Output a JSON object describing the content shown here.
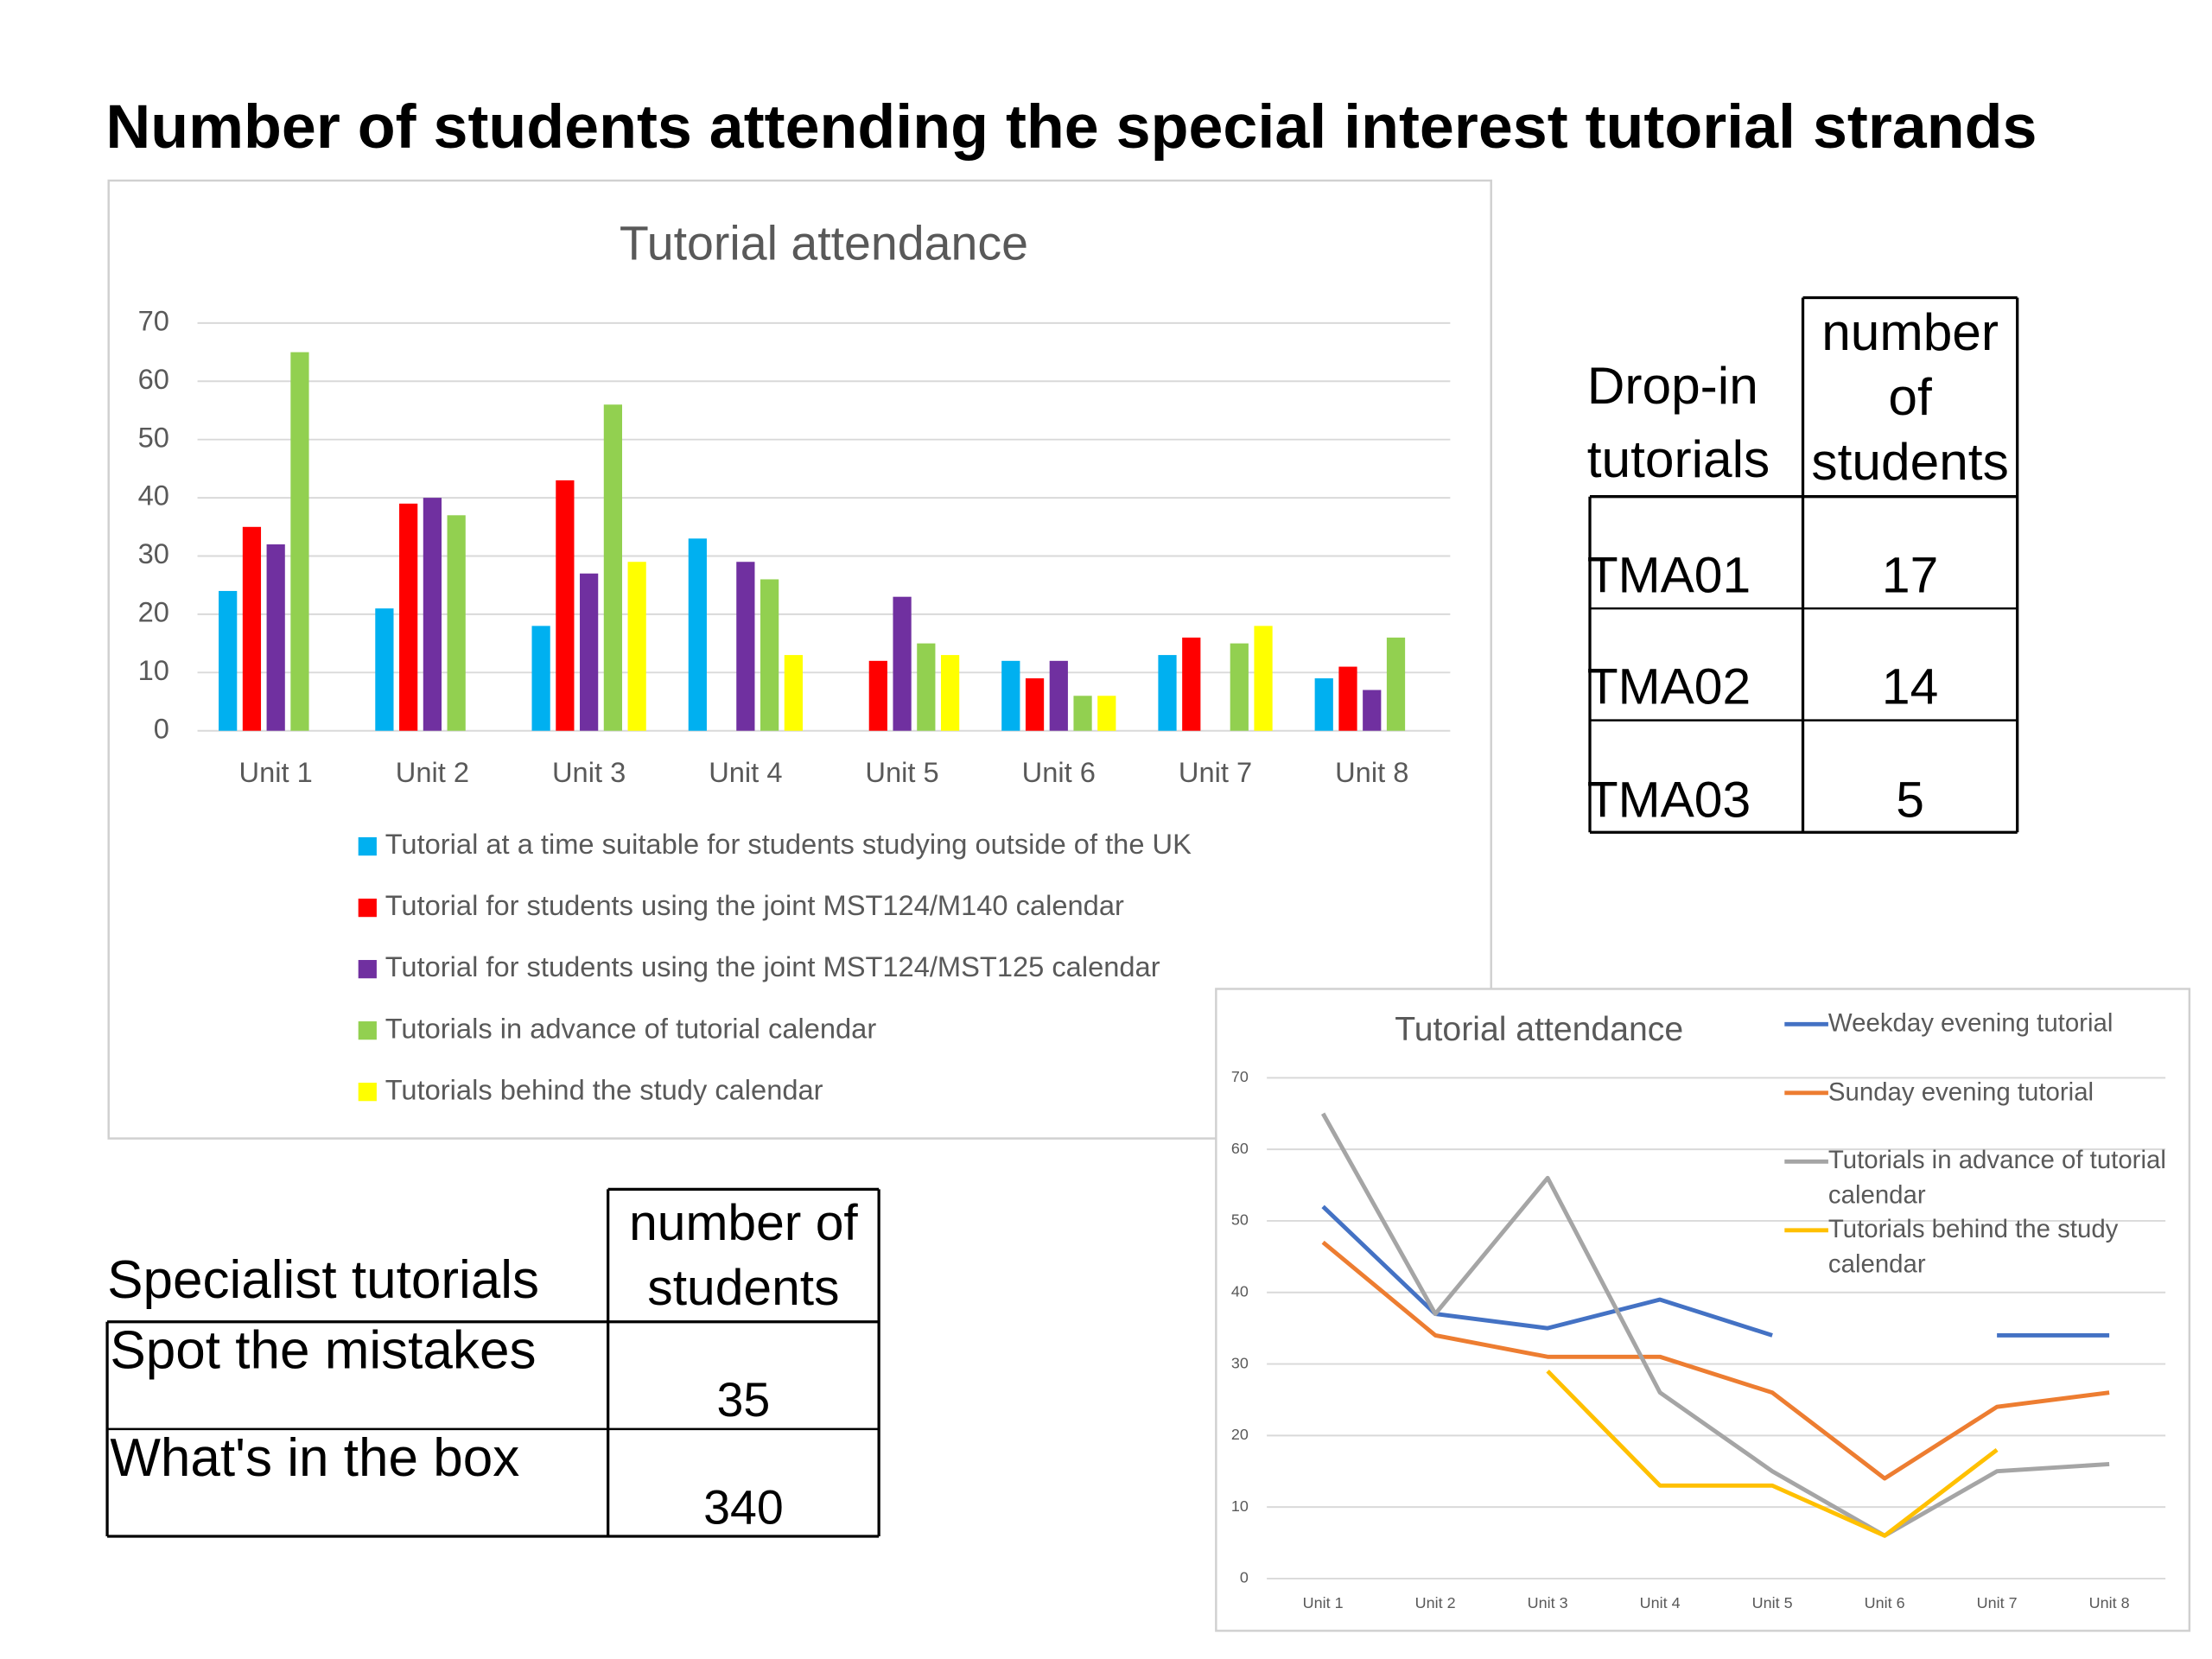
{
  "title": "Number of students attending the special interest tutorial strands",
  "chart_data": [
    {
      "type": "bar",
      "title": "Tutorial attendance",
      "categories": [
        "Unit 1",
        "Unit 2",
        "Unit 3",
        "Unit 4",
        "Unit 5",
        "Unit 6",
        "Unit 7",
        "Unit 8"
      ],
      "series": [
        {
          "name": "Tutorial at a time suitable for students studying outside of the UK",
          "color": "#00b0f0",
          "values": [
            24,
            21,
            18,
            33,
            null,
            12,
            13,
            9
          ]
        },
        {
          "name": "Tutorial for students using the joint MST124/M140 calendar",
          "color": "#ff0000",
          "values": [
            35,
            39,
            43,
            null,
            12,
            9,
            16,
            11
          ]
        },
        {
          "name": "Tutorial for students using the joint MST124/MST125 calendar",
          "color": "#7030a0",
          "values": [
            32,
            40,
            27,
            29,
            23,
            12,
            null,
            7
          ]
        },
        {
          "name": "Tutorials in advance of tutorial calendar",
          "color": "#92d050",
          "values": [
            65,
            37,
            56,
            26,
            15,
            6,
            15,
            16
          ]
        },
        {
          "name": "Tutorials behind the study calendar",
          "color": "#ffff00",
          "values": [
            null,
            null,
            29,
            13,
            13,
            6,
            18,
            null
          ]
        }
      ],
      "ylim": [
        0,
        70
      ],
      "yticks": [
        0,
        10,
        20,
        30,
        40,
        50,
        60,
        70
      ],
      "grid": true,
      "legend": "bottom"
    },
    {
      "type": "line",
      "title": "Tutorial attendance",
      "categories": [
        "Unit 1",
        "Unit 2",
        "Unit 3",
        "Unit 4",
        "Unit 5",
        "Unit 6",
        "Unit 7",
        "Unit 8"
      ],
      "series": [
        {
          "name": "Weekday evening tutorial",
          "color": "#4472c4",
          "values": [
            52,
            37,
            35,
            39,
            34,
            null,
            34,
            34
          ]
        },
        {
          "name": "Sunday evening tutorial",
          "color": "#ed7d31",
          "values": [
            47,
            34,
            31,
            31,
            26,
            14,
            24,
            26
          ]
        },
        {
          "name": "Tutorials in advance of tutorial calendar",
          "color": "#a5a5a5",
          "values": [
            65,
            37,
            56,
            26,
            15,
            6,
            15,
            16
          ]
        },
        {
          "name": "Tutorials behind the study calendar",
          "color": "#ffc000",
          "values": [
            null,
            null,
            29,
            13,
            13,
            6,
            18,
            null
          ]
        }
      ],
      "ylim": [
        0,
        70
      ],
      "yticks": [
        0,
        10,
        20,
        30,
        40,
        50,
        60,
        70
      ],
      "grid": true,
      "legend": "right"
    }
  ],
  "dropin_table": {
    "header": [
      "Drop-in tutorials",
      "number of students"
    ],
    "rows": [
      [
        "TMA01",
        17
      ],
      [
        "TMA02",
        14
      ],
      [
        "TMA03",
        5
      ]
    ]
  },
  "specialist_table": {
    "header": [
      "Specialist tutorials",
      "number of students"
    ],
    "rows": [
      [
        "Spot the mistakes",
        35
      ],
      [
        "What's in the box",
        340
      ]
    ]
  }
}
